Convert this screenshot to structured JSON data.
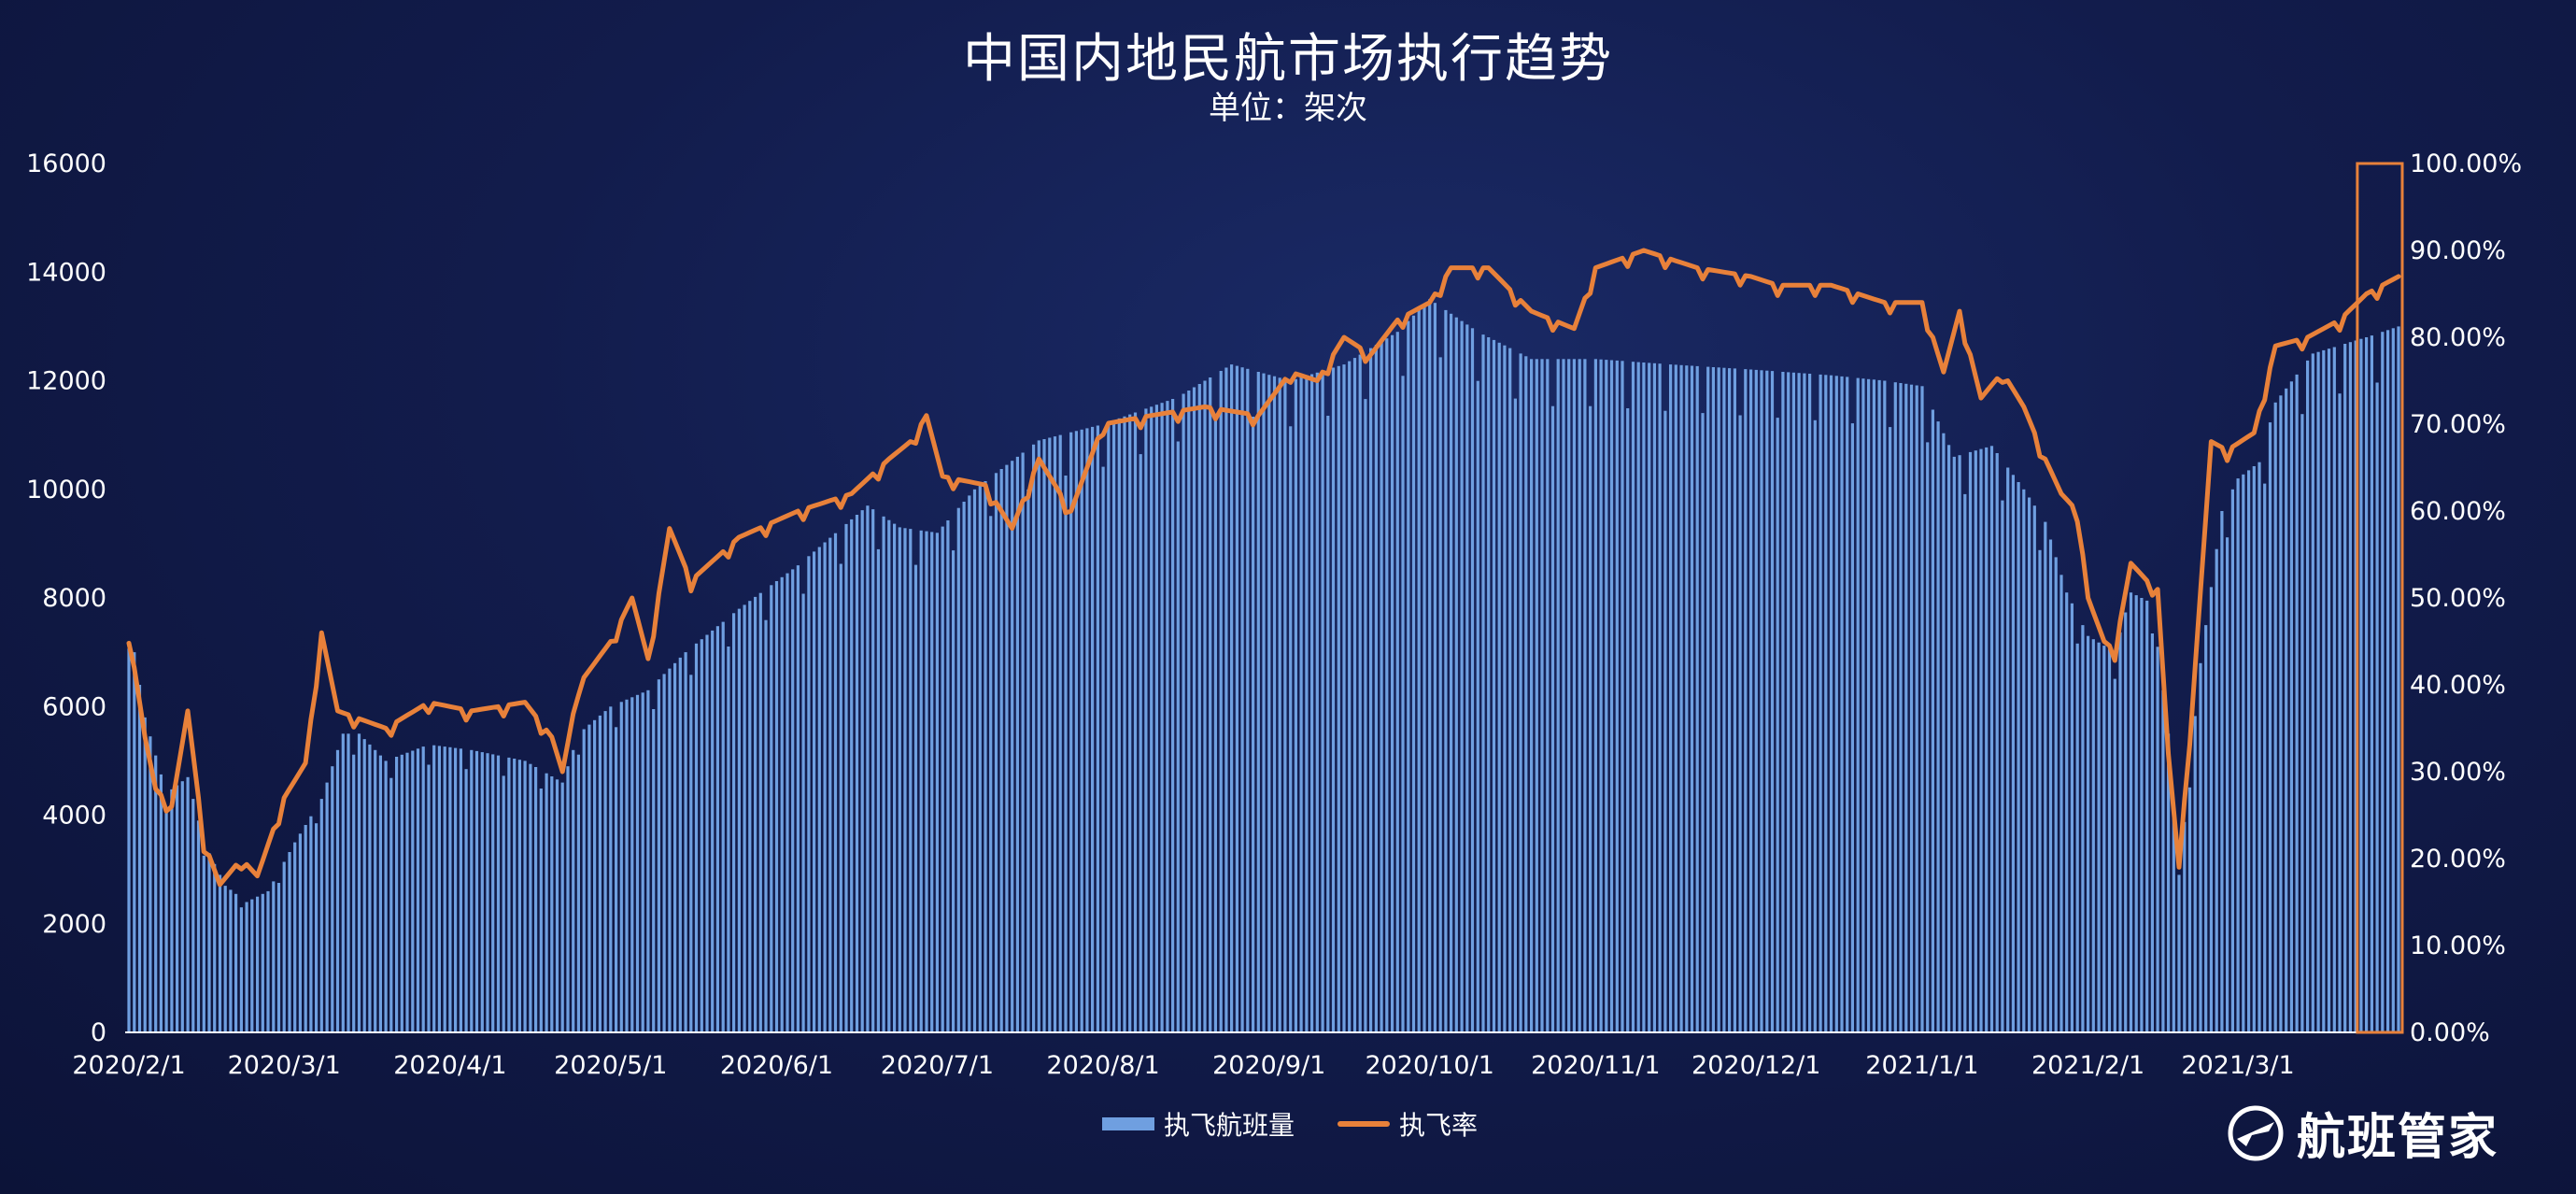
{
  "chart_data": {
    "type": "bar",
    "title": "中国内地民航市场执行趋势",
    "subtitle": "单位：架次",
    "x_ticks": [
      "2020/2/1",
      "2020/3/1",
      "2020/4/1",
      "2020/5/1",
      "2020/6/1",
      "2020/7/1",
      "2020/8/1",
      "2020/9/1",
      "2020/10/1",
      "2020/11/1",
      "2020/12/1",
      "2021/1/1",
      "2021/2/1",
      "2021/3/1"
    ],
    "y_left": {
      "ticks": [
        "0",
        "2000",
        "4000",
        "6000",
        "8000",
        "10000",
        "12000",
        "14000",
        "16000"
      ],
      "range": [
        0,
        16000
      ]
    },
    "y_right": {
      "ticks": [
        "0.00%",
        "10.00%",
        "20.00%",
        "30.00%",
        "40.00%",
        "50.00%",
        "60.00%",
        "70.00%",
        "80.00%",
        "90.00%",
        "100.00%"
      ],
      "range": [
        0,
        100
      ]
    },
    "x_range": [
      "2020-02-01",
      "2021-03-31"
    ],
    "series": [
      {
        "name": "执飞航班量",
        "kind": "bar",
        "axis": "left",
        "color": "#6f9fe0",
        "anchors": [
          [
            "2020-02-01",
            7600
          ],
          [
            "2020-02-04",
            5800
          ],
          [
            "2020-02-08",
            4400
          ],
          [
            "2020-02-12",
            4700
          ],
          [
            "2020-02-15",
            3500
          ],
          [
            "2020-02-19",
            2700
          ],
          [
            "2020-02-23",
            2400
          ],
          [
            "2020-02-27",
            2600
          ],
          [
            "2020-03-03",
            3500
          ],
          [
            "2020-03-08",
            4300
          ],
          [
            "2020-03-12",
            5500
          ],
          [
            "2020-03-15",
            5500
          ],
          [
            "2020-03-20",
            5000
          ],
          [
            "2020-03-28",
            5300
          ],
          [
            "2020-04-05",
            5200
          ],
          [
            "2020-04-15",
            5000
          ],
          [
            "2020-04-22",
            4600
          ],
          [
            "2020-04-25",
            5500
          ],
          [
            "2020-05-01",
            6000
          ],
          [
            "2020-05-08",
            6300
          ],
          [
            "2020-05-15",
            7000
          ],
          [
            "2020-05-25",
            7800
          ],
          [
            "2020-06-05",
            8600
          ],
          [
            "2020-06-18",
            9700
          ],
          [
            "2020-06-24",
            9300
          ],
          [
            "2020-07-01",
            9200
          ],
          [
            "2020-07-08",
            10000
          ],
          [
            "2020-07-20",
            10900
          ],
          [
            "2020-08-01",
            11200
          ],
          [
            "2020-08-15",
            11700
          ],
          [
            "2020-08-25",
            12300
          ],
          [
            "2020-09-05",
            12000
          ],
          [
            "2020-09-15",
            12300
          ],
          [
            "2020-09-25",
            12900
          ],
          [
            "2020-10-01",
            13500
          ],
          [
            "2020-10-10",
            12900
          ],
          [
            "2020-10-20",
            12400
          ],
          [
            "2020-11-01",
            12400
          ],
          [
            "2020-11-15",
            12300
          ],
          [
            "2020-12-01",
            12200
          ],
          [
            "2020-12-15",
            12100
          ],
          [
            "2020-12-25",
            12000
          ],
          [
            "2021-01-01",
            11900
          ],
          [
            "2021-01-07",
            10600
          ],
          [
            "2021-01-14",
            10800
          ],
          [
            "2021-01-20",
            10000
          ],
          [
            "2021-01-24",
            9400
          ],
          [
            "2021-01-28",
            8100
          ],
          [
            "2021-02-01",
            7300
          ],
          [
            "2021-02-06",
            7000
          ],
          [
            "2021-02-09",
            8100
          ],
          [
            "2021-02-13",
            7900
          ],
          [
            "2021-02-16",
            5500
          ],
          [
            "2021-02-18",
            2900
          ],
          [
            "2021-02-22",
            6800
          ],
          [
            "2021-02-26",
            9600
          ],
          [
            "2021-03-01",
            10200
          ],
          [
            "2021-03-05",
            10500
          ],
          [
            "2021-03-08",
            11600
          ],
          [
            "2021-03-15",
            12500
          ],
          [
            "2021-03-25",
            12800
          ],
          [
            "2021-03-31",
            13000
          ]
        ]
      },
      {
        "name": "执飞率",
        "kind": "line",
        "axis": "right",
        "color": "#e8813a",
        "anchors": [
          [
            "2020-02-01",
            46
          ],
          [
            "2020-02-04",
            34
          ],
          [
            "2020-02-06",
            28
          ],
          [
            "2020-02-09",
            26
          ],
          [
            "2020-02-12",
            37
          ],
          [
            "2020-02-15",
            22
          ],
          [
            "2020-02-18",
            17
          ],
          [
            "2020-02-22",
            20
          ],
          [
            "2020-02-25",
            18
          ],
          [
            "2020-03-01",
            27
          ],
          [
            "2020-03-05",
            31
          ],
          [
            "2020-03-08",
            46
          ],
          [
            "2020-03-11",
            37
          ],
          [
            "2020-03-20",
            35
          ],
          [
            "2020-03-28",
            38
          ],
          [
            "2020-04-05",
            37
          ],
          [
            "2020-04-15",
            38
          ],
          [
            "2020-04-20",
            34
          ],
          [
            "2020-04-22",
            30
          ],
          [
            "2020-04-25",
            40
          ],
          [
            "2020-05-01",
            45
          ],
          [
            "2020-05-05",
            50
          ],
          [
            "2020-05-08",
            43
          ],
          [
            "2020-05-12",
            58
          ],
          [
            "2020-05-16",
            52
          ],
          [
            "2020-05-25",
            57
          ],
          [
            "2020-06-05",
            60
          ],
          [
            "2020-06-15",
            62
          ],
          [
            "2020-06-22",
            66
          ],
          [
            "2020-06-26",
            68
          ],
          [
            "2020-06-29",
            71
          ],
          [
            "2020-07-02",
            64
          ],
          [
            "2020-07-10",
            63
          ],
          [
            "2020-07-15",
            58
          ],
          [
            "2020-07-20",
            66
          ],
          [
            "2020-07-26",
            60
          ],
          [
            "2020-08-01",
            70
          ],
          [
            "2020-08-10",
            71
          ],
          [
            "2020-08-20",
            72
          ],
          [
            "2020-08-30",
            71
          ],
          [
            "2020-09-05",
            76
          ],
          [
            "2020-09-10",
            75
          ],
          [
            "2020-09-15",
            80
          ],
          [
            "2020-09-20",
            78
          ],
          [
            "2020-09-25",
            82
          ],
          [
            "2020-10-01",
            84
          ],
          [
            "2020-10-05",
            88
          ],
          [
            "2020-10-12",
            88
          ],
          [
            "2020-10-20",
            83
          ],
          [
            "2020-10-28",
            81
          ],
          [
            "2020-11-01",
            88
          ],
          [
            "2020-11-10",
            90
          ],
          [
            "2020-11-20",
            88
          ],
          [
            "2020-11-30",
            87
          ],
          [
            "2020-12-05",
            86
          ],
          [
            "2020-12-15",
            86
          ],
          [
            "2020-12-25",
            84
          ],
          [
            "2021-01-01",
            84
          ],
          [
            "2021-01-05",
            76
          ],
          [
            "2021-01-08",
            83
          ],
          [
            "2021-01-12",
            73
          ],
          [
            "2021-01-16",
            76
          ],
          [
            "2021-01-20",
            72
          ],
          [
            "2021-01-24",
            66
          ],
          [
            "2021-01-27",
            62
          ],
          [
            "2021-01-30",
            60
          ],
          [
            "2021-02-01",
            50
          ],
          [
            "2021-02-04",
            45
          ],
          [
            "2021-02-06",
            44
          ],
          [
            "2021-02-09",
            54
          ],
          [
            "2021-02-12",
            52
          ],
          [
            "2021-02-14",
            51
          ],
          [
            "2021-02-16",
            32
          ],
          [
            "2021-02-18",
            19
          ],
          [
            "2021-02-21",
            42
          ],
          [
            "2021-02-24",
            68
          ],
          [
            "2021-02-27",
            67
          ],
          [
            "2021-03-04",
            69
          ],
          [
            "2021-03-08",
            79
          ],
          [
            "2021-03-14",
            80
          ],
          [
            "2021-03-20",
            82
          ],
          [
            "2021-03-25",
            85
          ],
          [
            "2021-03-28",
            86
          ],
          [
            "2021-03-31",
            87
          ]
        ]
      }
    ],
    "highlight_box": {
      "color": "#e8813a",
      "from": "2021-03-24",
      "to": "2021-03-31"
    },
    "grid": false,
    "legend": "bottom-center"
  },
  "brand": {
    "name": "航班管家"
  }
}
